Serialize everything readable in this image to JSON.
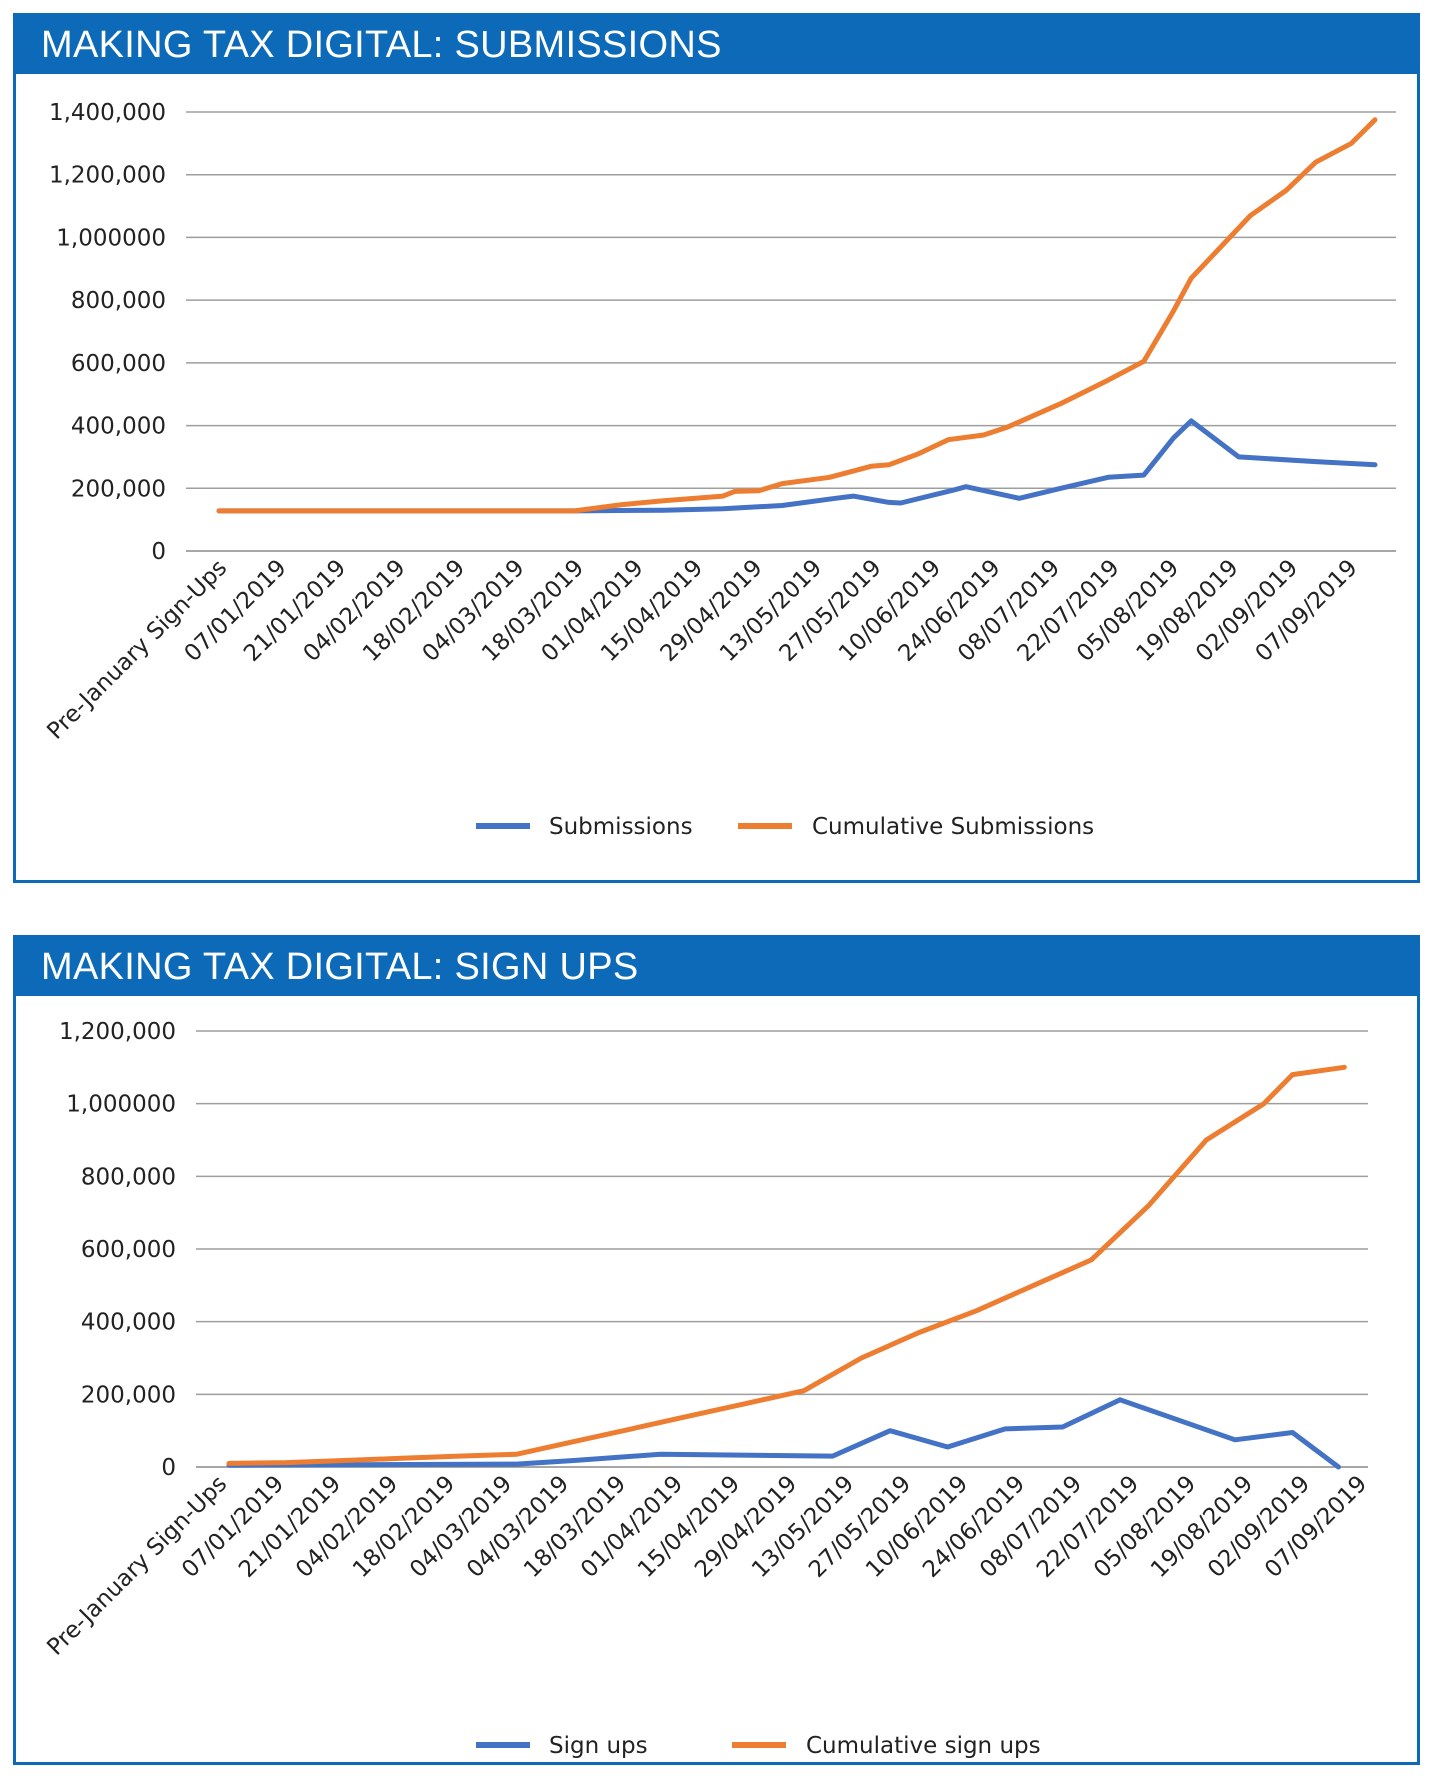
{
  "panels": [
    {
      "title": "MAKING TAX DIGITAL: SUBMISSIONS"
    },
    {
      "title": "MAKING TAX DIGITAL: SIGN UPS"
    }
  ],
  "colors": {
    "header_bg": "#0d6ab8",
    "series_blue": "#4472c4",
    "series_orange": "#ed7d31",
    "grid": "#9e9e9e"
  },
  "chart_data": [
    {
      "type": "line",
      "title": "MAKING TAX DIGITAL: SUBMISSIONS",
      "xlabel": "",
      "ylabel": "",
      "ylim": [
        0,
        1400000
      ],
      "y_ticks": [
        0,
        200000,
        400000,
        600000,
        800000,
        1000000,
        1200000,
        1400000
      ],
      "y_tick_labels": [
        "0",
        "200,000",
        "400,000",
        "600,000",
        "800,000",
        "1,000000",
        "1,200,000",
        "1,400,000"
      ],
      "grid": true,
      "legend": "bottom",
      "x_labels": [
        "Pre-January Sign-Ups",
        "07/01/2019",
        "21/01/2019",
        "04/02/2019",
        "18/02/2019",
        "04/03/2019",
        "18/03/2019",
        "01/04/2019",
        "15/04/2019",
        "29/04/2019",
        "13/05/2019",
        "27/05/2019",
        "10/06/2019",
        "24/06/2019",
        "08/07/2019",
        "22/07/2019",
        "05/08/2019",
        "19/08/2019",
        "02/09/2019",
        "07/09/2019"
      ],
      "x_start": 0,
      "x_end": 19.5,
      "series": [
        {
          "name": "Submissions",
          "color": "#4472c4",
          "points": [
            [
              0,
              128000
            ],
            [
              6,
              128000
            ],
            [
              7.5,
              130000
            ],
            [
              8.5,
              135000
            ],
            [
              9.5,
              145000
            ],
            [
              10.4,
              168000
            ],
            [
              10.7,
              175000
            ],
            [
              11.3,
              155000
            ],
            [
              11.5,
              153000
            ],
            [
              12.4,
              195000
            ],
            [
              12.6,
              205000
            ],
            [
              13.5,
              168000
            ],
            [
              14.2,
              200000
            ],
            [
              15.0,
              235000
            ],
            [
              15.6,
              242000
            ],
            [
              16.1,
              360000
            ],
            [
              16.4,
              415000
            ],
            [
              17.2,
              300000
            ],
            [
              18.5,
              285000
            ],
            [
              19.5,
              275000
            ]
          ]
        },
        {
          "name": "Cumulative Submissions",
          "color": "#ed7d31",
          "points": [
            [
              0,
              128000
            ],
            [
              6,
              128000
            ],
            [
              6.8,
              148000
            ],
            [
              7.5,
              160000
            ],
            [
              8.5,
              175000
            ],
            [
              8.7,
              190000
            ],
            [
              9.1,
              192000
            ],
            [
              9.5,
              215000
            ],
            [
              10.3,
              235000
            ],
            [
              11.0,
              270000
            ],
            [
              11.3,
              275000
            ],
            [
              11.8,
              310000
            ],
            [
              12.3,
              355000
            ],
            [
              12.9,
              370000
            ],
            [
              13.3,
              395000
            ],
            [
              14.2,
              470000
            ],
            [
              15.0,
              545000
            ],
            [
              15.6,
              605000
            ],
            [
              16.1,
              765000
            ],
            [
              16.4,
              870000
            ],
            [
              17.4,
              1070000
            ],
            [
              18.0,
              1150000
            ],
            [
              18.5,
              1240000
            ],
            [
              19.1,
              1300000
            ],
            [
              19.5,
              1375000
            ]
          ]
        }
      ]
    },
    {
      "type": "line",
      "title": "MAKING TAX DIGITAL: SIGN UPS",
      "xlabel": "",
      "ylabel": "",
      "ylim": [
        0,
        1200000
      ],
      "y_ticks": [
        0,
        200000,
        400000,
        600000,
        800000,
        1000000,
        1200000
      ],
      "y_tick_labels": [
        "0",
        "200,000",
        "400,000",
        "600,000",
        "800,000",
        "1,000000",
        "1,200,000"
      ],
      "grid": true,
      "legend": "bottom",
      "x_labels": [
        "Pre-January Sign-Ups",
        "07/01/2019",
        "21/01/2019",
        "04/02/2019",
        "18/02/2019",
        "04/03/2019",
        "04/03/2019",
        "18/03/2019",
        "01/04/2019",
        "15/04/2019",
        "29/04/2019",
        "13/05/2019",
        "27/05/2019",
        "10/06/2019",
        "24/06/2019",
        "08/07/2019",
        "22/07/2019",
        "05/08/2019",
        "19/08/2019",
        "02/09/2019",
        "07/09/2019"
      ],
      "x_start": 0,
      "x_end": 19.5,
      "series": [
        {
          "name": "Sign ups",
          "color": "#4472c4",
          "points": [
            [
              0,
              5000
            ],
            [
              5.0,
              8000
            ],
            [
              6.0,
              18000
            ],
            [
              7.5,
              35000
            ],
            [
              10.5,
              30000
            ],
            [
              11.5,
              100000
            ],
            [
              12.5,
              55000
            ],
            [
              13.5,
              105000
            ],
            [
              14.5,
              110000
            ],
            [
              15.5,
              185000
            ],
            [
              17.5,
              75000
            ],
            [
              18.5,
              95000
            ],
            [
              19.3,
              0
            ]
          ]
        },
        {
          "name": "Cumulative sign ups",
          "color": "#ed7d31",
          "points": [
            [
              0,
              10000
            ],
            [
              1,
              12000
            ],
            [
              2,
              18000
            ],
            [
              3,
              24000
            ],
            [
              4,
              30000
            ],
            [
              5,
              35000
            ],
            [
              6,
              70000
            ],
            [
              7,
              105000
            ],
            [
              8,
              140000
            ],
            [
              9,
              175000
            ],
            [
              10,
              210000
            ],
            [
              11,
              300000
            ],
            [
              12,
              370000
            ],
            [
              13,
              430000
            ],
            [
              14,
              500000
            ],
            [
              15,
              570000
            ],
            [
              16,
              720000
            ],
            [
              17,
              900000
            ],
            [
              18,
              1000000
            ],
            [
              18.5,
              1080000
            ],
            [
              19.4,
              1100000
            ]
          ]
        }
      ]
    }
  ]
}
